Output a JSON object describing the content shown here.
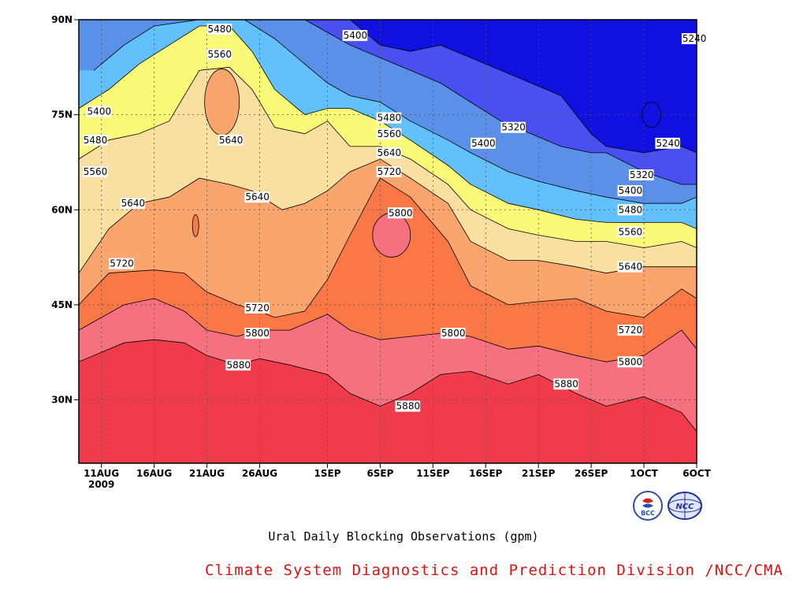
{
  "chart_data": {
    "type": "contour",
    "caption": "Ural Daily Blocking Observations (gpm)",
    "credit": "Climate System Diagnostics and Prediction Division /NCC/CMA",
    "logos": [
      {
        "icon": "bcc-logo-icon",
        "text": "BCC"
      },
      {
        "icon": "ncc-logo-icon",
        "text": "NCC"
      }
    ],
    "x_ticks": [
      {
        "label": "11AUG",
        "sublabel": "2009",
        "day": 3
      },
      {
        "label": "16AUG",
        "day": 10
      },
      {
        "label": "21AUG",
        "day": 17
      },
      {
        "label": "26AUG",
        "day": 24
      },
      {
        "label": "1SEP",
        "day": 33
      },
      {
        "label": "6SEP",
        "day": 40
      },
      {
        "label": "11SEP",
        "day": 47
      },
      {
        "label": "16SEP",
        "day": 54
      },
      {
        "label": "21SEP",
        "day": 61
      },
      {
        "label": "26SEP",
        "day": 68
      },
      {
        "label": "1OCT",
        "day": 75
      },
      {
        "label": "6OCT",
        "day": 82
      }
    ],
    "y_ticks": [
      {
        "label": "90N",
        "lat": 90
      },
      {
        "label": "75N",
        "lat": 75
      },
      {
        "label": "60N",
        "lat": 60
      },
      {
        "label": "45N",
        "lat": 45
      },
      {
        "label": "30N",
        "lat": 30
      }
    ],
    "xlim": [
      0,
      82
    ],
    "ylim": [
      20,
      90
    ],
    "grid": true,
    "levels": [
      5240,
      5320,
      5400,
      5480,
      5560,
      5640,
      5720,
      5800,
      5880
    ],
    "colors": [
      "#1010e0",
      "#4a50f0",
      "#5a90e8",
      "#64c0fa",
      "#fafa78",
      "#fae0a0",
      "#faa46e",
      "#fa7846",
      "#f67080",
      "#f03c4a"
    ],
    "contours": [
      {
        "level": 5880,
        "color_above": "#f03c4a",
        "points": [
          [
            0,
            36
          ],
          [
            6,
            39
          ],
          [
            10,
            39.5
          ],
          [
            14,
            39
          ],
          [
            17,
            37
          ],
          [
            21,
            35.5
          ],
          [
            24,
            36.5
          ],
          [
            28,
            35.5
          ],
          [
            33,
            34
          ],
          [
            36,
            31
          ],
          [
            40,
            29
          ],
          [
            44,
            31
          ],
          [
            48,
            34
          ],
          [
            52,
            34.5
          ],
          [
            57,
            32.5
          ],
          [
            61,
            34
          ],
          [
            66,
            31
          ],
          [
            70,
            29
          ],
          [
            75,
            30.5
          ],
          [
            80,
            28
          ],
          [
            82,
            25
          ]
        ]
      },
      {
        "level": 5800,
        "color_above": "#f67080",
        "points": [
          [
            0,
            41
          ],
          [
            6,
            45
          ],
          [
            10,
            46
          ],
          [
            14,
            44
          ],
          [
            17,
            41
          ],
          [
            21,
            40
          ],
          [
            24,
            41
          ],
          [
            28,
            41
          ],
          [
            33,
            43.5
          ],
          [
            36,
            41
          ],
          [
            40,
            39.5
          ],
          [
            44,
            40
          ],
          [
            48,
            40.5
          ],
          [
            52,
            40
          ],
          [
            57,
            38
          ],
          [
            61,
            38.5
          ],
          [
            66,
            37
          ],
          [
            70,
            36
          ],
          [
            75,
            37
          ],
          [
            80,
            41
          ],
          [
            82,
            38
          ]
        ]
      },
      {
        "level": 5720,
        "color_above": "#fa7846",
        "points": [
          [
            0,
            45
          ],
          [
            4,
            50
          ],
          [
            10,
            50.5
          ],
          [
            14,
            50
          ],
          [
            17,
            47
          ],
          [
            21,
            45
          ],
          [
            24,
            44
          ],
          [
            26,
            43
          ],
          [
            30,
            44
          ],
          [
            33,
            49
          ],
          [
            36,
            56
          ],
          [
            40,
            65
          ],
          [
            44,
            62
          ],
          [
            49,
            55
          ],
          [
            52,
            48
          ],
          [
            57,
            45
          ],
          [
            61,
            45.5
          ],
          [
            66,
            46
          ],
          [
            70,
            44
          ],
          [
            75,
            43
          ],
          [
            80,
            47.5
          ],
          [
            82,
            46
          ]
        ]
      },
      {
        "level": 5640,
        "color_above": "#faa46e",
        "points": [
          [
            0,
            50
          ],
          [
            4,
            57
          ],
          [
            8,
            61
          ],
          [
            12,
            62
          ],
          [
            16,
            65
          ],
          [
            20,
            64
          ],
          [
            23,
            63
          ],
          [
            27,
            60
          ],
          [
            30,
            61
          ],
          [
            33,
            63
          ],
          [
            36,
            66
          ],
          [
            40,
            68
          ],
          [
            44,
            65
          ],
          [
            49,
            61
          ],
          [
            52,
            55
          ],
          [
            57,
            52
          ],
          [
            61,
            52
          ],
          [
            66,
            51
          ],
          [
            70,
            50
          ],
          [
            75,
            51
          ],
          [
            80,
            51
          ],
          [
            82,
            51
          ]
        ]
      },
      {
        "level": 5560,
        "color_above": "#fae0a0",
        "points": [
          [
            0,
            68
          ],
          [
            4,
            71
          ],
          [
            8,
            72
          ],
          [
            12,
            74
          ],
          [
            16,
            82
          ],
          [
            20,
            82.5
          ],
          [
            23,
            79
          ],
          [
            26,
            73
          ],
          [
            30,
            72
          ],
          [
            33,
            74
          ],
          [
            36,
            70
          ],
          [
            40,
            70
          ],
          [
            44,
            68
          ],
          [
            49,
            64
          ],
          [
            52,
            60
          ],
          [
            57,
            57
          ],
          [
            61,
            56
          ],
          [
            66,
            55
          ],
          [
            70,
            55
          ],
          [
            75,
            54
          ],
          [
            80,
            55
          ],
          [
            82,
            54
          ]
        ]
      },
      {
        "level": 5480,
        "color_above": "#fafa78",
        "points": [
          [
            0,
            76
          ],
          [
            4,
            79
          ],
          [
            8,
            83
          ],
          [
            12,
            86
          ],
          [
            16,
            89
          ],
          [
            20,
            89
          ],
          [
            23,
            85
          ],
          [
            26,
            79
          ],
          [
            30,
            75
          ],
          [
            33,
            76
          ],
          [
            36,
            76
          ],
          [
            40,
            74
          ],
          [
            44,
            71
          ],
          [
            49,
            67
          ],
          [
            52,
            64
          ],
          [
            57,
            61
          ],
          [
            61,
            60
          ],
          [
            66,
            58.5
          ],
          [
            70,
            58
          ],
          [
            75,
            58
          ],
          [
            80,
            58
          ],
          [
            82,
            57
          ]
        ]
      },
      {
        "level": 5400,
        "color_above": "#64c0fa",
        "points": [
          [
            2,
            82
          ],
          [
            6,
            86
          ],
          [
            10,
            89
          ],
          [
            16,
            90
          ],
          [
            22,
            90
          ],
          [
            26,
            87
          ],
          [
            30,
            83
          ],
          [
            33,
            80
          ],
          [
            36,
            78
          ],
          [
            40,
            77
          ],
          [
            44,
            74
          ],
          [
            49,
            71
          ],
          [
            52,
            69
          ],
          [
            57,
            66
          ],
          [
            61,
            64.5
          ],
          [
            66,
            63
          ],
          [
            70,
            62
          ],
          [
            75,
            61
          ],
          [
            80,
            61
          ],
          [
            82,
            62
          ]
        ]
      },
      {
        "level": 5320,
        "color_above": "#5a90e8",
        "points": [
          [
            30,
            90
          ],
          [
            33,
            88
          ],
          [
            36,
            86
          ],
          [
            40,
            84
          ],
          [
            44,
            82
          ],
          [
            48,
            80
          ],
          [
            52,
            77
          ],
          [
            56,
            74
          ],
          [
            60,
            72
          ],
          [
            64,
            70
          ],
          [
            68,
            69
          ],
          [
            70,
            69
          ],
          [
            75,
            66
          ],
          [
            80,
            64
          ],
          [
            82,
            64
          ]
        ]
      },
      {
        "level": 5240,
        "color_above": "#4a50f0",
        "points": [
          [
            36,
            90
          ],
          [
            40,
            86
          ],
          [
            44,
            85
          ],
          [
            48,
            86
          ],
          [
            52,
            84
          ],
          [
            56,
            82
          ],
          [
            60,
            80
          ],
          [
            64,
            78
          ],
          [
            68,
            72
          ],
          [
            70,
            70
          ],
          [
            75,
            69
          ],
          [
            80,
            70
          ],
          [
            82,
            69
          ]
        ]
      }
    ],
    "closed_contours": [
      {
        "level": 5640,
        "color": "#faa46e",
        "center_day": 19,
        "center_lat": 77
      },
      {
        "level": 5800,
        "color": "#f67080",
        "center_day": 41.5,
        "center_lat": 56
      },
      {
        "level": 5240,
        "color": "#1010e0",
        "center_day": 76,
        "center_lat": 75
      },
      {
        "level": 5720,
        "color": "#fa7846",
        "center_day": 15.5,
        "center_lat": 57.5
      }
    ],
    "contour_labels": [
      {
        "text": "5480",
        "day": 17,
        "lat": 88.5
      },
      {
        "text": "5400",
        "day": 35,
        "lat": 87.5
      },
      {
        "text": "5240",
        "day": 80,
        "lat": 87
      },
      {
        "text": "5560",
        "day": 17,
        "lat": 84.5
      },
      {
        "text": "5400",
        "day": 1,
        "lat": 75.5
      },
      {
        "text": "5480",
        "day": 0.5,
        "lat": 71
      },
      {
        "text": "5640",
        "day": 18.5,
        "lat": 71
      },
      {
        "text": "5480",
        "day": 39.5,
        "lat": 74.5
      },
      {
        "text": "5320",
        "day": 56,
        "lat": 73
      },
      {
        "text": "5560",
        "day": 39.5,
        "lat": 72
      },
      {
        "text": "5400",
        "day": 52,
        "lat": 70.5
      },
      {
        "text": "5240",
        "day": 76.5,
        "lat": 70.5
      },
      {
        "text": "5640",
        "day": 39.5,
        "lat": 69
      },
      {
        "text": "5560",
        "day": 0.5,
        "lat": 66
      },
      {
        "text": "5720",
        "day": 39.5,
        "lat": 66
      },
      {
        "text": "5320",
        "day": 73,
        "lat": 65.5
      },
      {
        "text": "5400",
        "day": 71.5,
        "lat": 63
      },
      {
        "text": "5640",
        "day": 22,
        "lat": 62
      },
      {
        "text": "5640",
        "day": 5.5,
        "lat": 61
      },
      {
        "text": "5480",
        "day": 71.5,
        "lat": 60
      },
      {
        "text": "5800",
        "day": 41,
        "lat": 59.5
      },
      {
        "text": "5560",
        "day": 71.5,
        "lat": 56.5
      },
      {
        "text": "5720",
        "day": 4,
        "lat": 51.5
      },
      {
        "text": "5640",
        "day": 71.5,
        "lat": 51
      },
      {
        "text": "5720",
        "day": 22,
        "lat": 44.5
      },
      {
        "text": "5720",
        "day": 71.5,
        "lat": 41
      },
      {
        "text": "5800",
        "day": 22,
        "lat": 40.5
      },
      {
        "text": "5800",
        "day": 48,
        "lat": 40.5
      },
      {
        "text": "5800",
        "day": 71.5,
        "lat": 36
      },
      {
        "text": "5880",
        "day": 19.5,
        "lat": 35.5
      },
      {
        "text": "5880",
        "day": 63,
        "lat": 32.5
      },
      {
        "text": "5880",
        "day": 42,
        "lat": 29
      }
    ]
  }
}
